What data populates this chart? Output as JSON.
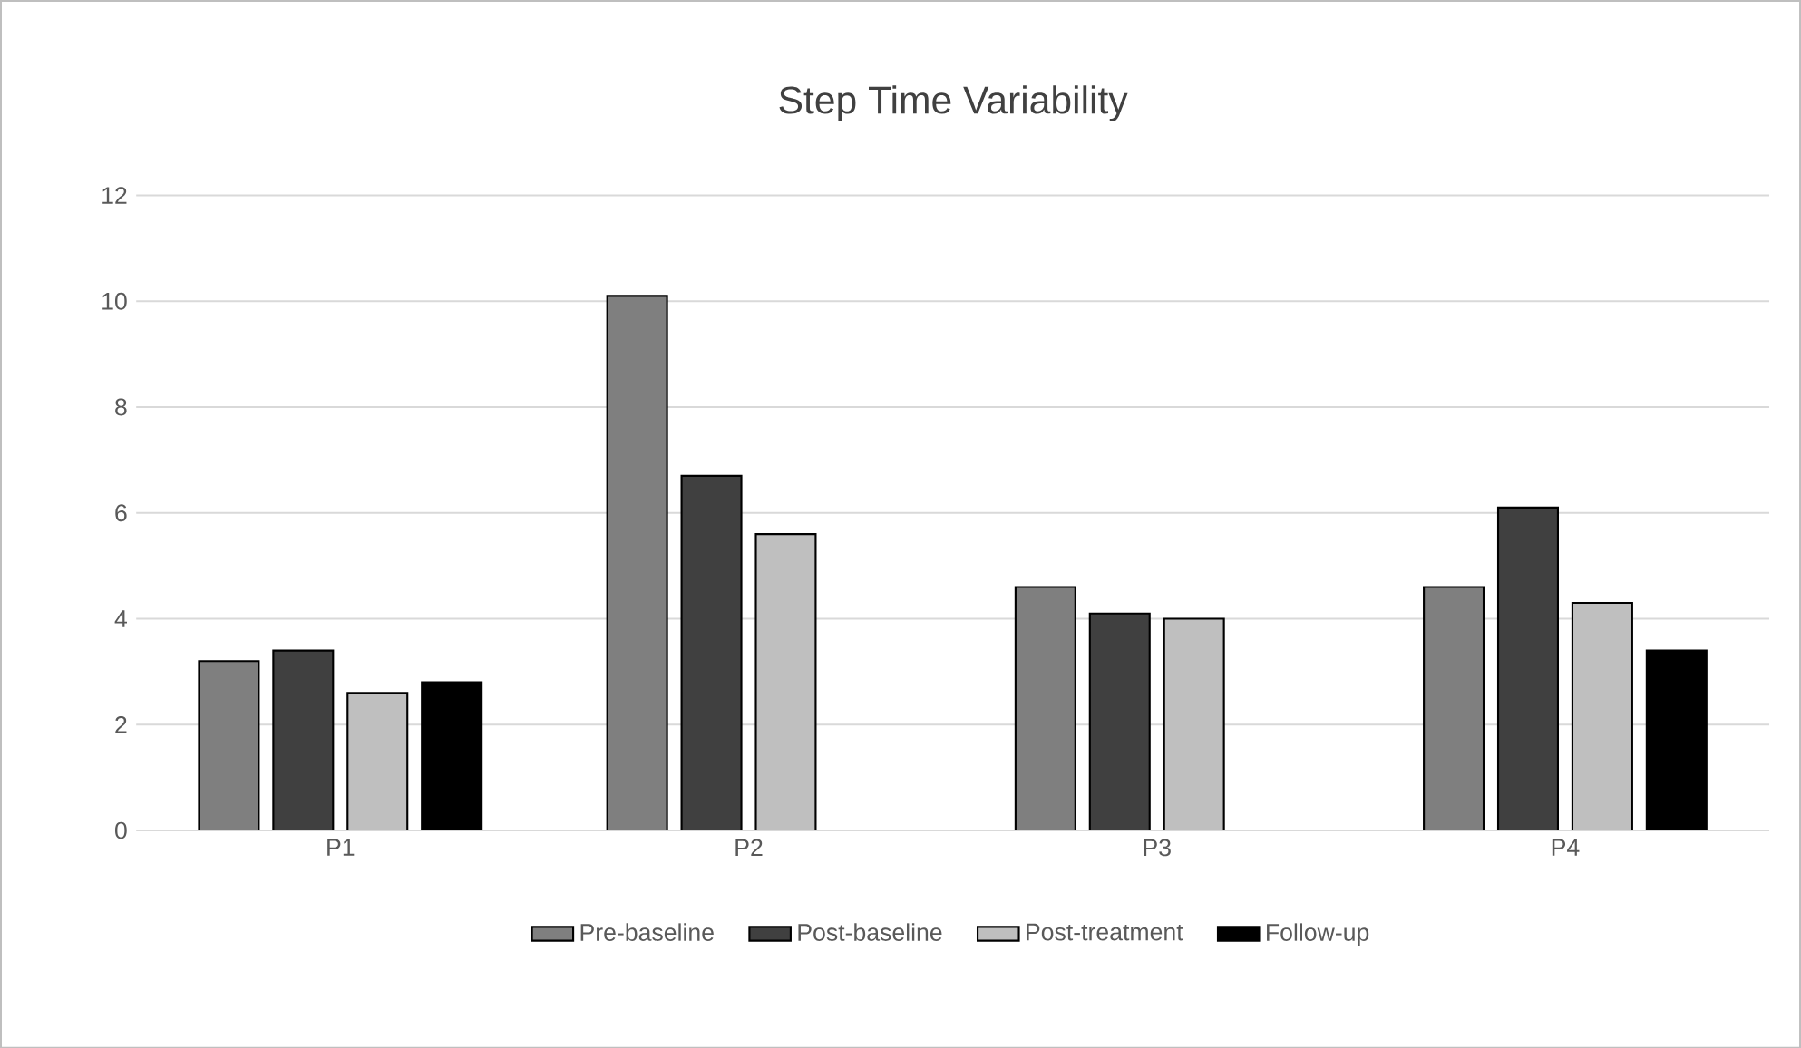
{
  "chart_data": {
    "type": "bar",
    "title": "Step Time Variability",
    "categories": [
      "P1",
      "P2",
      "P3",
      "P4"
    ],
    "series": [
      {
        "name": "Pre-baseline",
        "color": "#7f7f7f",
        "values": [
          3.2,
          10.1,
          4.6,
          4.6
        ]
      },
      {
        "name": "Post-baseline",
        "color": "#404040",
        "values": [
          3.4,
          6.7,
          4.1,
          6.1
        ]
      },
      {
        "name": "Post-treatment",
        "color": "#bfbfbf",
        "values": [
          2.6,
          5.6,
          4.0,
          4.3
        ]
      },
      {
        "name": "Follow-up",
        "color": "#000000",
        "values": [
          2.8,
          null,
          null,
          3.4
        ]
      }
    ],
    "ylim": [
      0,
      12
    ],
    "yticks": [
      0,
      2,
      4,
      6,
      8,
      10,
      12
    ],
    "grid": "y",
    "legend": "bottom"
  }
}
